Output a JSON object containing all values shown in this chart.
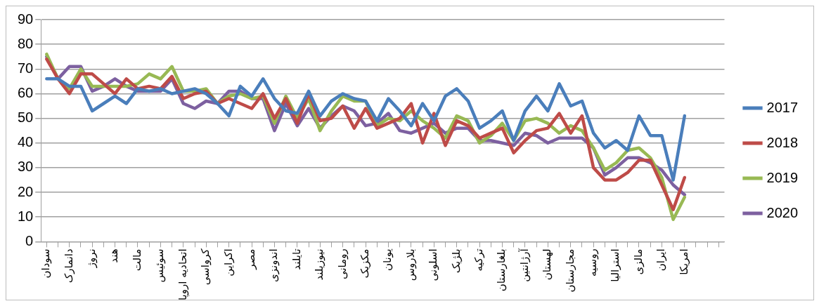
{
  "chart_data": {
    "type": "line",
    "categories": [
      "سودان",
      null,
      "دانمارک",
      null,
      "نروژ",
      null,
      "هند",
      null,
      "مالت",
      null,
      "سوئیس",
      null,
      "اتحادیه اروپا",
      null,
      "کرواسی",
      null,
      "اکراین",
      null,
      "مصر",
      null,
      "اندونزی",
      null,
      "تایلند",
      null,
      "نیوزیلند",
      null,
      "رومانی",
      null,
      "مکزیک",
      null,
      "یونان",
      null,
      "بلاروس",
      null,
      "اسلونی",
      null,
      "بلژیک",
      null,
      "ترکیه",
      null,
      "بلغارستان",
      null,
      "آرژانتین",
      null,
      "لهستان",
      null,
      "مجارستان",
      null,
      "روسیه",
      null,
      "استرالیا",
      null,
      "مالزی",
      null,
      "ایران",
      null,
      "امریکا",
      null,
      null,
      null
    ],
    "series": [
      {
        "name": "2017",
        "color": "#4a7ebb",
        "values": [
          66,
          66,
          63,
          63,
          53,
          56,
          59,
          56,
          62,
          61,
          62,
          60,
          61,
          62,
          60,
          56,
          51,
          63,
          59,
          66,
          58,
          53,
          52,
          61,
          51,
          57,
          60,
          58,
          57,
          49,
          58,
          53,
          47,
          56,
          49,
          59,
          62,
          57,
          46,
          49,
          53,
          41,
          53,
          59,
          53,
          64,
          55,
          57,
          44,
          38,
          41,
          37,
          51,
          43,
          43,
          25,
          51,
          null,
          null,
          null
        ]
      },
      {
        "name": "2018",
        "color": "#be4b48",
        "values": [
          74,
          66,
          60,
          68,
          68,
          64,
          60,
          66,
          62,
          63,
          62,
          67,
          58,
          60,
          61,
          56,
          58,
          56,
          54,
          60,
          50,
          58,
          48,
          60,
          49,
          50,
          55,
          46,
          54,
          46,
          48,
          50,
          56,
          40,
          52,
          39,
          49,
          47,
          42,
          44,
          46,
          36,
          41,
          45,
          46,
          52,
          44,
          51,
          30,
          25,
          25,
          28,
          33,
          33,
          23,
          13,
          26,
          null,
          null,
          null
        ]
      },
      {
        "name": "2019",
        "color": "#98b954",
        "values": [
          76,
          66,
          62,
          70,
          63,
          63,
          63,
          63,
          64,
          68,
          66,
          71,
          61,
          61,
          62,
          56,
          59,
          60,
          58,
          59,
          48,
          59,
          50,
          58,
          45,
          53,
          59,
          57,
          57,
          47,
          50,
          49,
          53,
          49,
          46,
          42,
          51,
          49,
          40,
          43,
          48,
          41,
          49,
          50,
          48,
          44,
          47,
          45,
          38,
          29,
          32,
          37,
          38,
          34,
          26,
          9,
          18,
          null,
          null,
          null
        ]
      },
      {
        "name": "2020",
        "color": "#7d60a0",
        "values": [
          75,
          66,
          71,
          71,
          61,
          63,
          66,
          63,
          61,
          61,
          61,
          66,
          56,
          54,
          57,
          56,
          61,
          61,
          58,
          58,
          45,
          56,
          47,
          54,
          46,
          51,
          55,
          53,
          47,
          48,
          52,
          45,
          44,
          46,
          48,
          44,
          46,
          46,
          41,
          41,
          40,
          39,
          44,
          43,
          40,
          42,
          42,
          42,
          38,
          27,
          30,
          34,
          34,
          32,
          29,
          23,
          19,
          null,
          null,
          null
        ]
      }
    ],
    "ylim": [
      0,
      90
    ],
    "yticks": [
      0,
      10,
      20,
      30,
      40,
      50,
      60,
      70,
      80,
      90
    ],
    "grid": "y",
    "legend": "right",
    "marker": "none"
  }
}
